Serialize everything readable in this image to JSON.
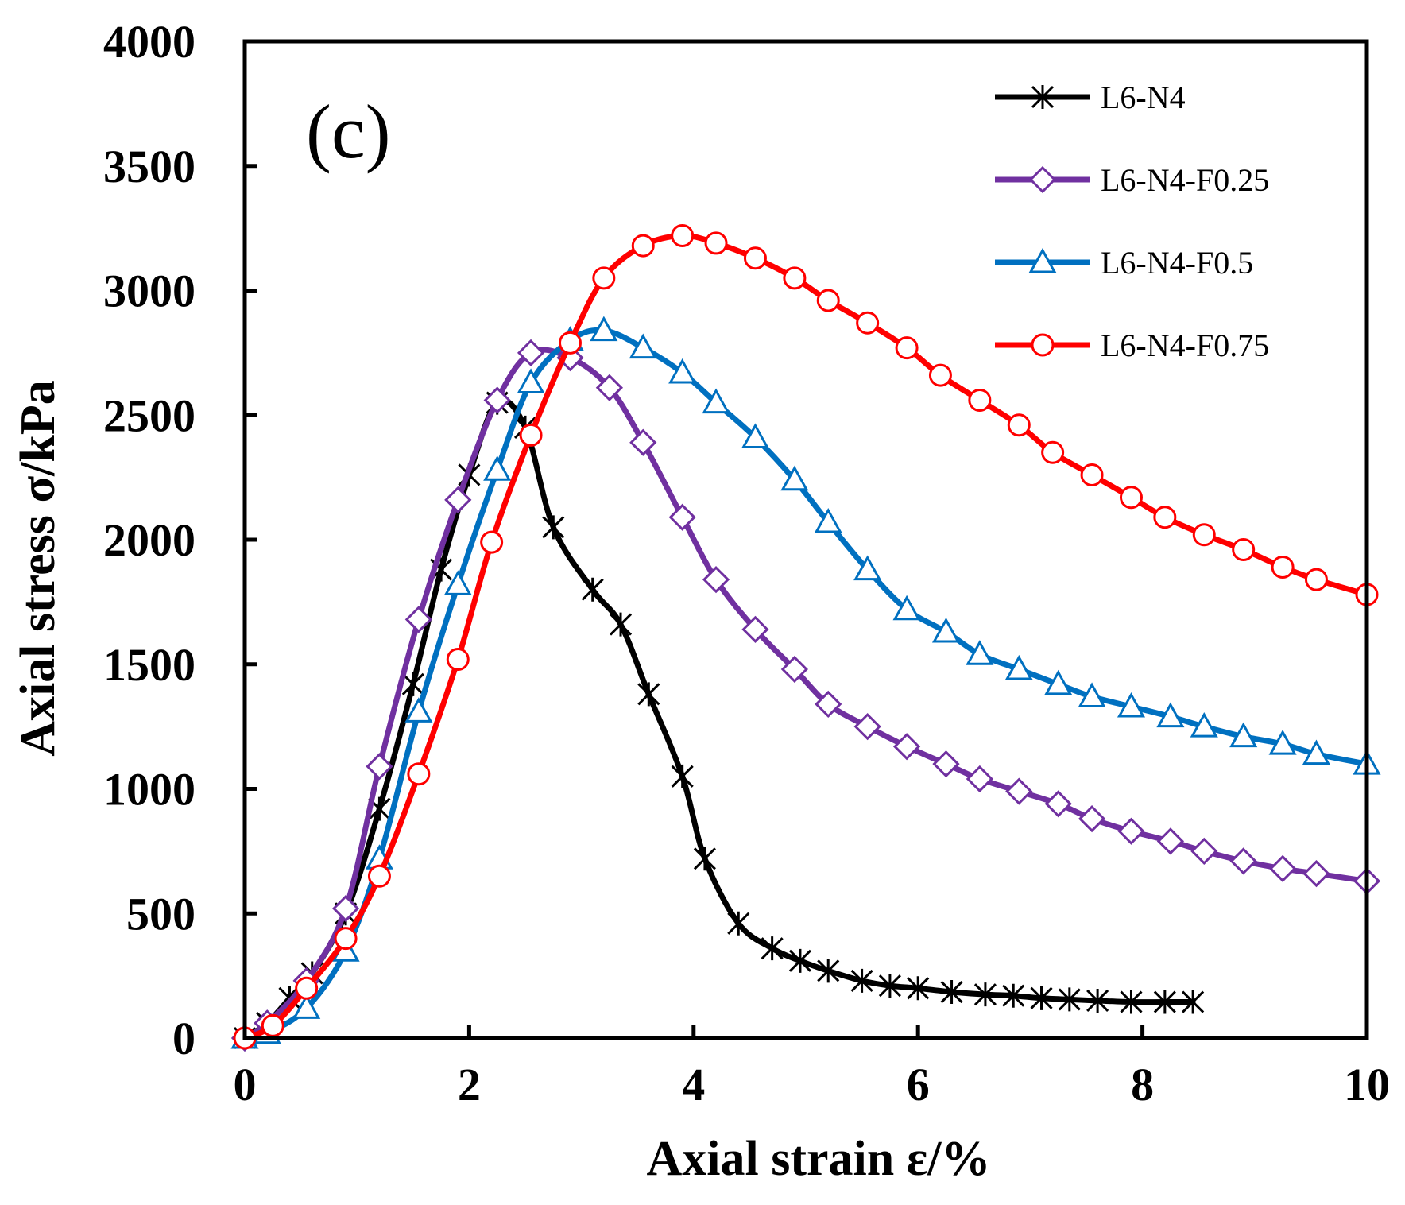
{
  "chart_data": {
    "type": "line",
    "panel_label": "(c)",
    "xlabel": "Axial strain ε/%",
    "ylabel": "Axial stress σ/kPa",
    "xlim": [
      0,
      10
    ],
    "ylim": [
      0,
      4000
    ],
    "xticks": [
      0,
      2,
      4,
      6,
      8,
      10
    ],
    "yticks": [
      0,
      500,
      1000,
      1500,
      2000,
      2500,
      3000,
      3500,
      4000
    ],
    "grid": false,
    "legend_position": "top-right",
    "series": [
      {
        "name": "L6-N4",
        "color": "#000000",
        "marker": "star",
        "x": [
          0,
          0.2,
          0.4,
          0.6,
          0.9,
          1.2,
          1.5,
          1.75,
          2.0,
          2.25,
          2.5,
          2.75,
          3.1,
          3.35,
          3.6,
          3.9,
          4.1,
          4.4,
          4.7,
          4.95,
          5.2,
          5.5,
          5.75,
          6.0,
          6.3,
          6.6,
          6.85,
          7.1,
          7.35,
          7.6,
          7.9,
          8.2,
          8.45
        ],
        "y": [
          0,
          60,
          160,
          260,
          500,
          920,
          1420,
          1880,
          2260,
          2550,
          2450,
          2050,
          1800,
          1660,
          1380,
          1050,
          720,
          460,
          360,
          310,
          270,
          230,
          210,
          200,
          185,
          175,
          170,
          160,
          155,
          150,
          145,
          145,
          145
        ]
      },
      {
        "name": "L6-N4-F0.25",
        "color": "#7030A0",
        "marker": "diamond",
        "x": [
          0,
          0.2,
          0.55,
          0.9,
          1.2,
          1.55,
          1.9,
          2.25,
          2.55,
          2.9,
          3.25,
          3.55,
          3.9,
          4.2,
          4.55,
          4.9,
          5.2,
          5.55,
          5.9,
          6.25,
          6.55,
          6.9,
          7.25,
          7.55,
          7.9,
          8.25,
          8.55,
          8.9,
          9.25,
          9.55,
          10.0
        ],
        "y": [
          0,
          60,
          230,
          520,
          1090,
          1680,
          2160,
          2560,
          2750,
          2730,
          2610,
          2390,
          2090,
          1840,
          1640,
          1480,
          1340,
          1250,
          1170,
          1100,
          1040,
          990,
          940,
          880,
          830,
          790,
          750,
          710,
          680,
          660,
          630
        ]
      },
      {
        "name": "L6-N4-F0.5",
        "color": "#0070C0",
        "marker": "triangle",
        "x": [
          0,
          0.2,
          0.55,
          0.9,
          1.2,
          1.55,
          1.9,
          2.25,
          2.55,
          2.9,
          3.2,
          3.55,
          3.9,
          4.2,
          4.55,
          4.9,
          5.2,
          5.55,
          5.9,
          6.25,
          6.55,
          6.9,
          7.25,
          7.55,
          7.9,
          8.25,
          8.55,
          8.9,
          9.25,
          9.55,
          10.0
        ],
        "y": [
          0,
          20,
          120,
          350,
          720,
          1310,
          1820,
          2280,
          2630,
          2800,
          2840,
          2770,
          2670,
          2550,
          2410,
          2240,
          2070,
          1880,
          1720,
          1630,
          1540,
          1480,
          1420,
          1370,
          1330,
          1290,
          1250,
          1210,
          1180,
          1140,
          1100
        ]
      },
      {
        "name": "L6-N4-F0.75",
        "color": "#FF0000",
        "marker": "circle",
        "x": [
          0,
          0.25,
          0.55,
          0.9,
          1.2,
          1.55,
          1.9,
          2.2,
          2.55,
          2.9,
          3.2,
          3.55,
          3.9,
          4.2,
          4.55,
          4.9,
          5.2,
          5.55,
          5.9,
          6.2,
          6.55,
          6.9,
          7.2,
          7.55,
          7.9,
          8.2,
          8.55,
          8.9,
          9.25,
          9.55,
          10.0
        ],
        "y": [
          0,
          50,
          200,
          400,
          650,
          1060,
          1520,
          1990,
          2420,
          2790,
          3050,
          3180,
          3220,
          3190,
          3130,
          3050,
          2960,
          2870,
          2770,
          2660,
          2560,
          2460,
          2350,
          2260,
          2170,
          2090,
          2020,
          1960,
          1890,
          1840,
          1780
        ]
      }
    ]
  }
}
